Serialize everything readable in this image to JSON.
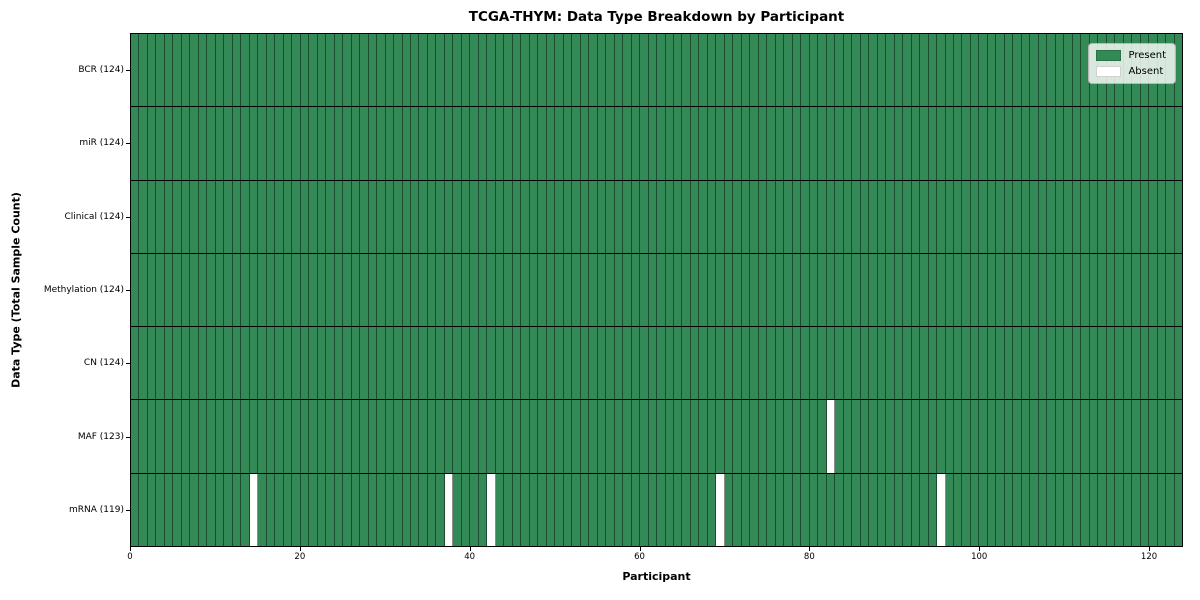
{
  "chart_data": {
    "type": "heatmap",
    "title": "TCGA-THYM: Data Type Breakdown by Participant",
    "xlabel": "Participant",
    "ylabel": "Data Type (Total Sample Count)",
    "n_participants": 124,
    "x_ticks": [
      0,
      20,
      40,
      60,
      80,
      100,
      120
    ],
    "x_range": [
      0,
      124
    ],
    "grid": false,
    "legend_position": "upper right",
    "rows": [
      {
        "label": "BCR (124)",
        "data_type": "BCR",
        "present_count": 124,
        "absent_participants": []
      },
      {
        "label": "miR (124)",
        "data_type": "miR",
        "present_count": 124,
        "absent_participants": []
      },
      {
        "label": "Clinical (124)",
        "data_type": "Clinical",
        "present_count": 124,
        "absent_participants": []
      },
      {
        "label": "Methylation (124)",
        "data_type": "Methylation",
        "present_count": 124,
        "absent_participants": []
      },
      {
        "label": "CN (124)",
        "data_type": "CN",
        "present_count": 124,
        "absent_participants": []
      },
      {
        "label": "MAF (123)",
        "data_type": "MAF",
        "present_count": 123,
        "absent_participants": [
          82
        ]
      },
      {
        "label": "mRNA (119)",
        "data_type": "mRNA",
        "present_count": 119,
        "absent_participants": [
          14,
          37,
          42,
          69,
          95
        ]
      }
    ],
    "legend": [
      {
        "label": "Present",
        "color": "#338a57"
      },
      {
        "label": "Absent",
        "color": "#ffffff"
      }
    ],
    "colors": {
      "present": "#338a57",
      "absent": "#ffffff",
      "cell_edge": "rgba(0,0,0,0.45)",
      "row_edge": "#000000",
      "plot_border": "#000000"
    }
  }
}
